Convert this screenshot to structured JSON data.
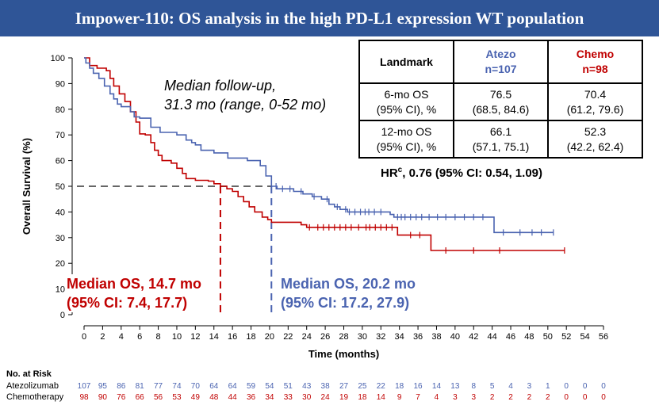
{
  "title": "Impower-110: OS analysis in the high PD-L1 expression WT population",
  "followup": {
    "line1": "Median follow-up,",
    "line2": "31.3 mo (range, 0-52 mo)"
  },
  "table": {
    "header": {
      "landmark": "Landmark",
      "atezo_name": "Atezo",
      "atezo_n": "n=107",
      "chemo_name": "Chemo",
      "chemo_n": "n=98"
    },
    "rows": [
      {
        "label1": "6-mo OS",
        "label2": "(95% CI), %",
        "atezo_val": "76.5",
        "atezo_ci": "(68.5, 84.6)",
        "chemo_val": "70.4",
        "chemo_ci": "(61.2, 79.6)"
      },
      {
        "label1": "12-mo OS",
        "label2": "(95% CI), %",
        "atezo_val": "66.1",
        "atezo_ci": "(57.1, 75.1)",
        "chemo_val": "52.3",
        "chemo_ci": "(42.2, 62.4)"
      }
    ]
  },
  "hr": {
    "prefix": "HR",
    "sup": "c",
    "text": ", 0.76 (95% CI: 0.54, 1.09)"
  },
  "median_chemo": {
    "line1": "Median OS, 14.7 mo",
    "line2": "(95% CI: 7.4, 17.7)",
    "value": 14.7
  },
  "median_atezo": {
    "line1": "Median OS, 20.2 mo",
    "line2": "(95% CI: 17.2, 27.9)",
    "value": 20.2
  },
  "colors": {
    "atezo": "#4a63b0",
    "chemo": "#c00000",
    "title_bg": "#2f5597",
    "median_ref": "#666666"
  },
  "risk": {
    "heading": "No. at Risk",
    "atezo_label": "Atezolizumab",
    "chemo_label": "Chemotherapy",
    "atezo": [
      107,
      95,
      86,
      81,
      77,
      74,
      70,
      64,
      64,
      59,
      54,
      51,
      43,
      38,
      27,
      25,
      22,
      18,
      16,
      14,
      13,
      8,
      5,
      4,
      3,
      1,
      0,
      0,
      0
    ],
    "chemo": [
      98,
      90,
      76,
      66,
      56,
      53,
      49,
      48,
      44,
      36,
      34,
      33,
      30,
      24,
      19,
      18,
      14,
      9,
      7,
      4,
      3,
      3,
      2,
      2,
      2,
      2,
      0,
      0,
      0
    ]
  },
  "chart_data": {
    "type": "line",
    "xlabel": "Time (months)",
    "ylabel": "Overall Survival (%)",
    "xlim": [
      0,
      56
    ],
    "ylim": [
      0,
      100
    ],
    "xticks": [
      0,
      2,
      4,
      6,
      8,
      10,
      12,
      14,
      16,
      18,
      20,
      22,
      24,
      26,
      28,
      30,
      32,
      34,
      36,
      38,
      40,
      42,
      44,
      46,
      48,
      50,
      52,
      54,
      56
    ],
    "yticks": [
      0,
      10,
      20,
      30,
      40,
      50,
      60,
      70,
      80,
      90,
      100
    ],
    "reference_line_y": 50,
    "series": [
      {
        "key": "atezo",
        "points": [
          [
            0,
            100
          ],
          [
            0.2,
            98
          ],
          [
            0.6,
            96
          ],
          [
            1,
            94
          ],
          [
            1.6,
            92
          ],
          [
            2.2,
            89
          ],
          [
            2.8,
            86
          ],
          [
            3.2,
            84
          ],
          [
            3.6,
            82
          ],
          [
            4,
            81
          ],
          [
            5,
            79
          ],
          [
            5.4,
            77
          ],
          [
            6,
            76.5
          ],
          [
            7.2,
            73
          ],
          [
            8.2,
            71
          ],
          [
            10,
            70
          ],
          [
            11,
            68
          ],
          [
            11.6,
            67
          ],
          [
            12,
            66.1
          ],
          [
            12.6,
            64
          ],
          [
            14,
            63
          ],
          [
            15.5,
            61
          ],
          [
            17.6,
            60
          ],
          [
            19,
            58
          ],
          [
            19.6,
            54
          ],
          [
            20.2,
            50
          ],
          [
            20.8,
            49
          ],
          [
            22.6,
            48
          ],
          [
            23.6,
            47
          ],
          [
            24.6,
            46
          ],
          [
            25.6,
            45
          ],
          [
            26.4,
            43
          ],
          [
            27,
            42
          ],
          [
            27.6,
            41
          ],
          [
            28.4,
            40
          ],
          [
            33,
            39
          ],
          [
            33.4,
            38
          ],
          [
            44,
            38
          ],
          [
            44.2,
            32
          ],
          [
            50.6,
            32
          ]
        ],
        "censor_x": [
          20.7,
          21.4,
          22.2,
          23.4,
          24.8,
          26.2,
          27.3,
          28.2,
          28.6,
          29.2,
          29.8,
          30.3,
          30.7,
          31.3,
          32,
          33.8,
          34.2,
          34.6,
          35.2,
          35.8,
          36.4,
          37.2,
          38.1,
          39,
          40,
          41,
          42,
          43,
          45.2,
          47,
          48.3,
          49.3,
          50.6
        ]
      },
      {
        "key": "chemo",
        "points": [
          [
            0,
            100
          ],
          [
            0.6,
            97
          ],
          [
            1.4,
            96
          ],
          [
            2.4,
            95
          ],
          [
            2.8,
            92
          ],
          [
            3.2,
            89
          ],
          [
            3.8,
            86
          ],
          [
            4.4,
            83
          ],
          [
            5,
            79
          ],
          [
            5.6,
            75
          ],
          [
            6,
            70.4
          ],
          [
            6.6,
            70
          ],
          [
            7.2,
            67
          ],
          [
            7.6,
            64
          ],
          [
            8,
            62
          ],
          [
            8.4,
            60
          ],
          [
            9.4,
            59
          ],
          [
            10,
            57
          ],
          [
            10.6,
            55
          ],
          [
            11,
            53
          ],
          [
            12,
            52.3
          ],
          [
            13.4,
            52
          ],
          [
            14,
            51
          ],
          [
            14.7,
            50
          ],
          [
            15.4,
            49
          ],
          [
            16,
            48
          ],
          [
            16.6,
            46
          ],
          [
            17.2,
            44
          ],
          [
            17.8,
            42
          ],
          [
            18.4,
            40
          ],
          [
            19.2,
            38
          ],
          [
            19.8,
            37
          ],
          [
            20.2,
            36
          ],
          [
            23.4,
            35
          ],
          [
            24,
            34
          ],
          [
            33.6,
            34
          ],
          [
            33.8,
            31
          ],
          [
            37.2,
            31
          ],
          [
            37.4,
            25
          ],
          [
            51.8,
            25
          ]
        ],
        "censor_x": [
          24.3,
          25.2,
          25.8,
          26.4,
          27,
          27.6,
          28.2,
          28.8,
          29.6,
          30.4,
          30.8,
          31.4,
          32,
          32.6,
          33.2,
          35.2,
          36.2,
          39,
          42,
          44.8,
          51.8
        ]
      }
    ],
    "annotations": [
      "Median OS, 14.7 mo",
      "Median OS, 20.2 mo"
    ]
  }
}
